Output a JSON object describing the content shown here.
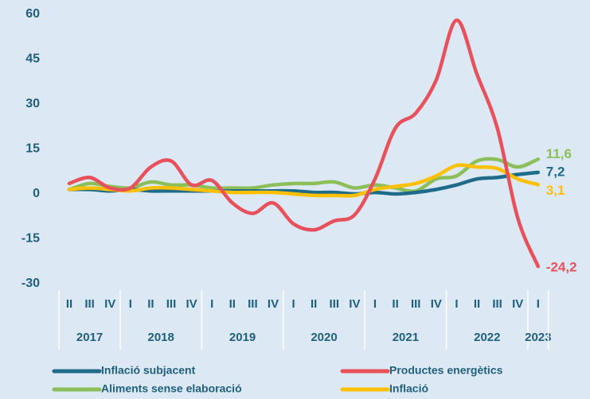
{
  "chart_data": {
    "type": "line",
    "categories": [
      "II",
      "III",
      "IV",
      "I",
      "II",
      "III",
      "IV",
      "I",
      "II",
      "III",
      "IV",
      "I",
      "II",
      "III",
      "IV",
      "I",
      "II",
      "III",
      "IV",
      "I",
      "II",
      "III",
      "IV",
      "I"
    ],
    "year_groups": [
      {
        "label": "2017",
        "quarters": 3
      },
      {
        "label": "2018",
        "quarters": 4
      },
      {
        "label": "2019",
        "quarters": 4
      },
      {
        "label": "2020",
        "quarters": 4
      },
      {
        "label": "2021",
        "quarters": 4
      },
      {
        "label": "2022",
        "quarters": 4
      },
      {
        "label": "2023",
        "quarters": 1
      }
    ],
    "ylim": [
      -30,
      60
    ],
    "yticks": [
      60,
      45,
      30,
      15,
      0,
      -15,
      -30
    ],
    "series": [
      {
        "name": "Inflació subjacent",
        "color": "#1f6b8a",
        "values": [
          1.5,
          1.5,
          1,
          1.5,
          1,
          1,
          1,
          1,
          1,
          1,
          1,
          1,
          0.5,
          0.5,
          0,
          0.5,
          0,
          0.5,
          1.5,
          3,
          5,
          5.5,
          6.5,
          7.2
        ],
        "value_labels": [
          null,
          null,
          null,
          null,
          null,
          null,
          null,
          null,
          null,
          null,
          null,
          null,
          null,
          null,
          null,
          null,
          null,
          null,
          null,
          null,
          null,
          null,
          null,
          "7,2"
        ]
      },
      {
        "name": "Productes energètics",
        "color": "#e8505b",
        "values": [
          3.5,
          5.5,
          2,
          2,
          9,
          11,
          3,
          4.5,
          -3,
          -6.5,
          -3,
          -10,
          -12,
          -9,
          -7,
          5,
          22,
          27,
          38,
          58,
          40,
          22,
          -8,
          -24.2
        ],
        "value_labels": [
          null,
          null,
          null,
          null,
          null,
          null,
          null,
          null,
          null,
          null,
          null,
          null,
          null,
          null,
          null,
          null,
          null,
          null,
          null,
          null,
          null,
          null,
          null,
          "-24,2"
        ]
      },
      {
        "name": "Aliments sense elaboració",
        "color": "#8cbf5a",
        "values": [
          1.5,
          3.5,
          2.5,
          2,
          4,
          3,
          3,
          2,
          2,
          2,
          3,
          3.5,
          3.5,
          4,
          2,
          3,
          2,
          1,
          5,
          6,
          11,
          11.5,
          9,
          11.6
        ],
        "value_labels": [
          null,
          null,
          null,
          null,
          null,
          null,
          null,
          null,
          null,
          null,
          null,
          null,
          null,
          null,
          null,
          null,
          null,
          null,
          null,
          null,
          null,
          null,
          null,
          "11,6"
        ]
      },
      {
        "name": "Inflació",
        "color": "#ffc000",
        "values": [
          1.5,
          2,
          1.5,
          1,
          2,
          2,
          1.5,
          1,
          0.5,
          0.5,
          0.5,
          0,
          -0.5,
          -0.5,
          -0.5,
          1.5,
          2.5,
          3.5,
          6,
          9.5,
          9,
          8.5,
          5,
          3.1
        ],
        "value_labels": [
          null,
          null,
          null,
          null,
          null,
          null,
          null,
          null,
          null,
          null,
          null,
          null,
          null,
          null,
          null,
          null,
          null,
          null,
          null,
          null,
          null,
          null,
          null,
          "3,1"
        ]
      }
    ]
  }
}
